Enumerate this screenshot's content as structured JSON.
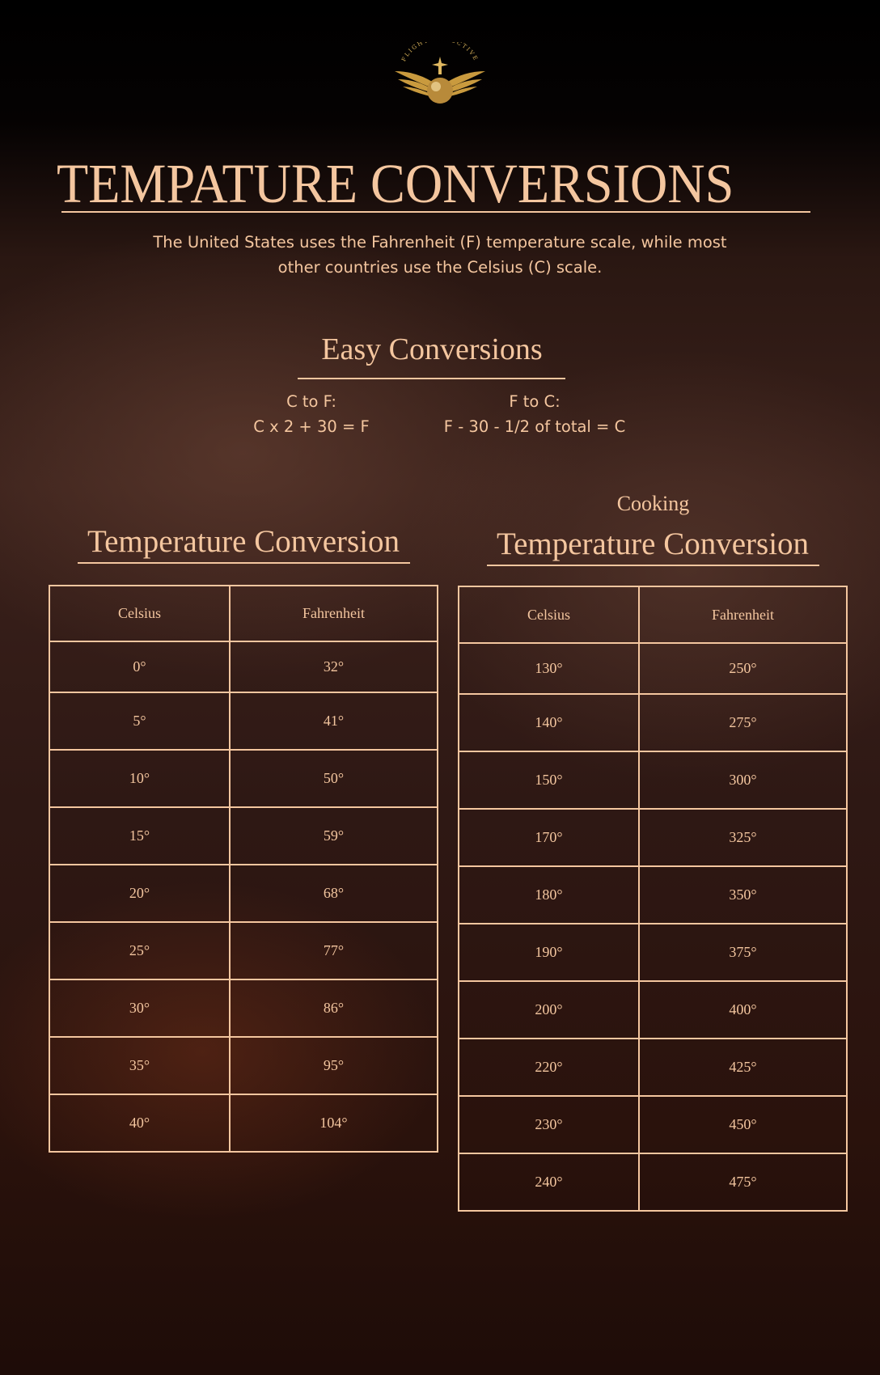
{
  "logo": {
    "text": "FLIGHT•SELECTIVE",
    "accent": "#d9b25a"
  },
  "header": {
    "title": "TEMPATURE CONVERSIONS",
    "intro_line1": "The United States uses the Fahrenheit (F) temperature scale, while most",
    "intro_line2": "other countries use the Celsius (C) scale."
  },
  "easy": {
    "heading": "Easy Conversions",
    "c_to_f_label": "C to F:",
    "c_to_f_formula": "C x 2 + 30 = F",
    "f_to_c_label": "F to C:",
    "f_to_c_formula": "F - 30 - 1/2 of total = C"
  },
  "left_table": {
    "heading": "Temperature Conversion",
    "headers": [
      "Celsius",
      "Fahrenheit"
    ],
    "rows": [
      [
        "0°",
        "32°"
      ],
      [
        "5°",
        "41°"
      ],
      [
        "10°",
        "50°"
      ],
      [
        "15°",
        "59°"
      ],
      [
        "20°",
        "68°"
      ],
      [
        "25°",
        "77°"
      ],
      [
        "30°",
        "86°"
      ],
      [
        "35°",
        "95°"
      ],
      [
        "40°",
        "104°"
      ]
    ]
  },
  "right_table": {
    "kicker": "Cooking",
    "heading": "Temperature Conversion",
    "headers": [
      "Celsius",
      "Fahrenheit"
    ],
    "rows": [
      [
        "130°",
        "250°"
      ],
      [
        "140°",
        "275°"
      ],
      [
        "150°",
        "300°"
      ],
      [
        "170°",
        "325°"
      ],
      [
        "180°",
        "350°"
      ],
      [
        "190°",
        "375°"
      ],
      [
        "200°",
        "400°"
      ],
      [
        "220°",
        "425°"
      ],
      [
        "230°",
        "450°"
      ],
      [
        "240°",
        "475°"
      ]
    ]
  },
  "colors": {
    "text": "#f4c69f",
    "background": "#2e1814"
  }
}
